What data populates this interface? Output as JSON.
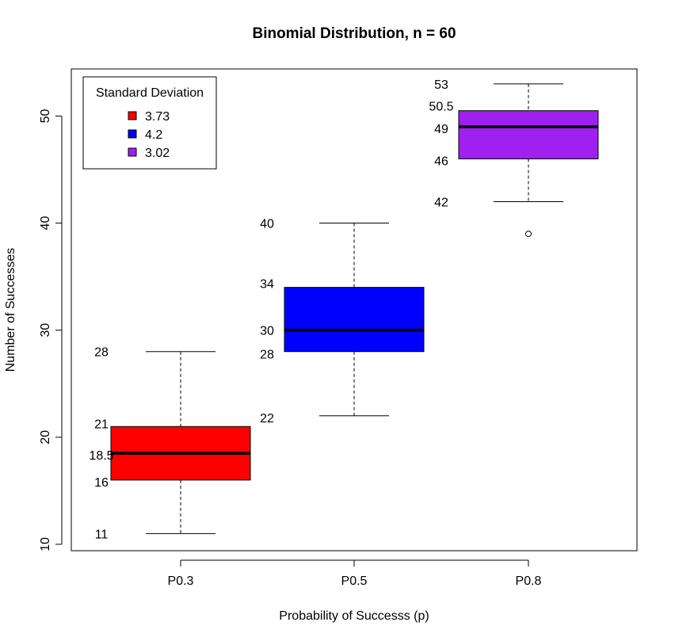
{
  "chart_data": {
    "type": "boxplot",
    "title": "Binomial Distribution, n = 60",
    "xlabel": "Probability of Successs (p)",
    "ylabel": "Number of Successes",
    "ylim": [
      9.4,
      54.4
    ],
    "y_ticks": [
      "10",
      "20",
      "30",
      "40",
      "50"
    ],
    "grid": false,
    "categories": [
      "P0.3",
      "P0.5",
      "P0.8"
    ],
    "boxes": [
      {
        "category": "P0.3",
        "min": 11,
        "q1": 16,
        "median": 18.5,
        "q3": 21,
        "max": 28,
        "outliers": [],
        "color": "#ff0000",
        "labels": {
          "max": "28",
          "q3": "21",
          "median": "18.5",
          "q1": "16",
          "min": "11"
        }
      },
      {
        "category": "P0.5",
        "min": 22,
        "q1": 28,
        "median": 30,
        "q3": 34,
        "max": 40,
        "outliers": [],
        "color": "#0000ff",
        "labels": {
          "max": "40",
          "q3": "34",
          "median": "30",
          "q1": "28",
          "min": "22"
        }
      },
      {
        "category": "P0.8",
        "min": 42,
        "q1": 46,
        "median": 49,
        "q3": 50.5,
        "max": 53,
        "outliers": [
          39
        ],
        "color": "#a020f0",
        "labels": {
          "max": "53",
          "q3": "50.5",
          "median": "49",
          "q1": "46",
          "min": "42"
        }
      }
    ],
    "legend": {
      "title": "Standard Deviation",
      "position": "top-left",
      "entries": [
        {
          "label": "3.73",
          "color": "#ff0000"
        },
        {
          "label": "4.2",
          "color": "#0000ff"
        },
        {
          "label": "3.02",
          "color": "#a020f0"
        }
      ]
    }
  }
}
